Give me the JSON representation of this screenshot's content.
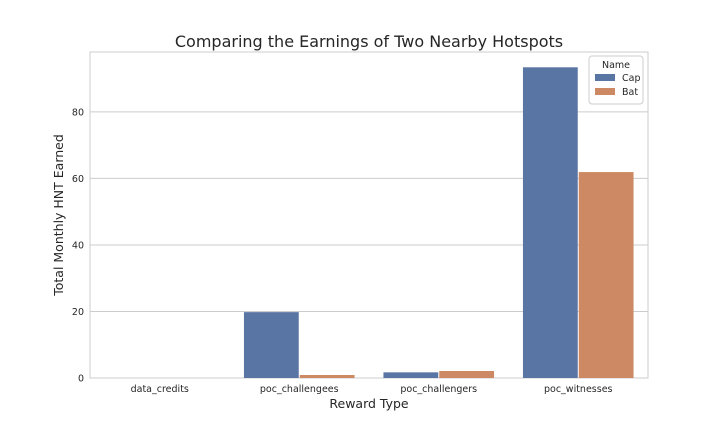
{
  "chart_data": {
    "type": "bar",
    "title": "Comparing the Earnings of Two Nearby Hotspots",
    "xlabel": "Reward Type",
    "ylabel": "Total Monthly HNT Earned",
    "categories": [
      "data_credits",
      "poc_challengees",
      "poc_challengers",
      "poc_witnesses"
    ],
    "series": [
      {
        "name": "Cap",
        "color": "#5975a4",
        "values": [
          0,
          19.8,
          1.7,
          93.4
        ]
      },
      {
        "name": "Bat",
        "color": "#cc8963",
        "values": [
          0,
          0.9,
          2.1,
          61.9
        ]
      }
    ],
    "ylim": [
      0,
      98
    ],
    "yticks": [
      0,
      20,
      40,
      60,
      80
    ],
    "grid": true,
    "legend": {
      "title": "Name",
      "placement": "top-right"
    }
  }
}
